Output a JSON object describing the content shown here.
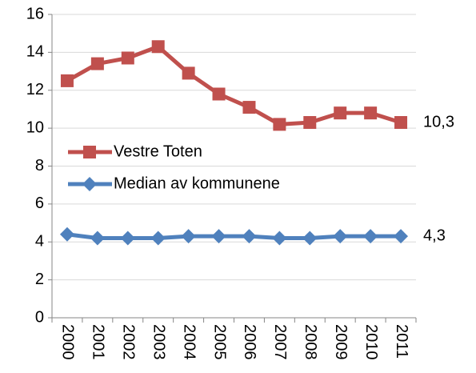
{
  "chart_data": {
    "type": "line",
    "categories": [
      "2000",
      "2001",
      "2002",
      "2003",
      "2004",
      "2005",
      "2006",
      "2007",
      "2008",
      "2009",
      "2010",
      "2011"
    ],
    "series": [
      {
        "name": "Vestre Toten",
        "color": "#c0504d",
        "marker": "square",
        "values": [
          12.5,
          13.4,
          13.7,
          14.3,
          12.9,
          11.8,
          11.1,
          10.2,
          10.3,
          10.8,
          10.8,
          10.3
        ],
        "value_labels": [
          null,
          null,
          null,
          null,
          null,
          null,
          null,
          null,
          null,
          null,
          null,
          "10,3"
        ]
      },
      {
        "name": "Median av kommunene",
        "color": "#4f81bd",
        "marker": "diamond",
        "values": [
          4.4,
          4.2,
          4.2,
          4.2,
          4.3,
          4.3,
          4.3,
          4.2,
          4.2,
          4.3,
          4.3,
          4.3
        ],
        "value_labels": [
          null,
          null,
          null,
          null,
          null,
          null,
          null,
          null,
          null,
          null,
          null,
          "4,3"
        ]
      }
    ],
    "ylim": [
      0,
      16
    ],
    "yticks": [
      0,
      2,
      4,
      6,
      8,
      10,
      12,
      14,
      16
    ],
    "grid": true
  }
}
